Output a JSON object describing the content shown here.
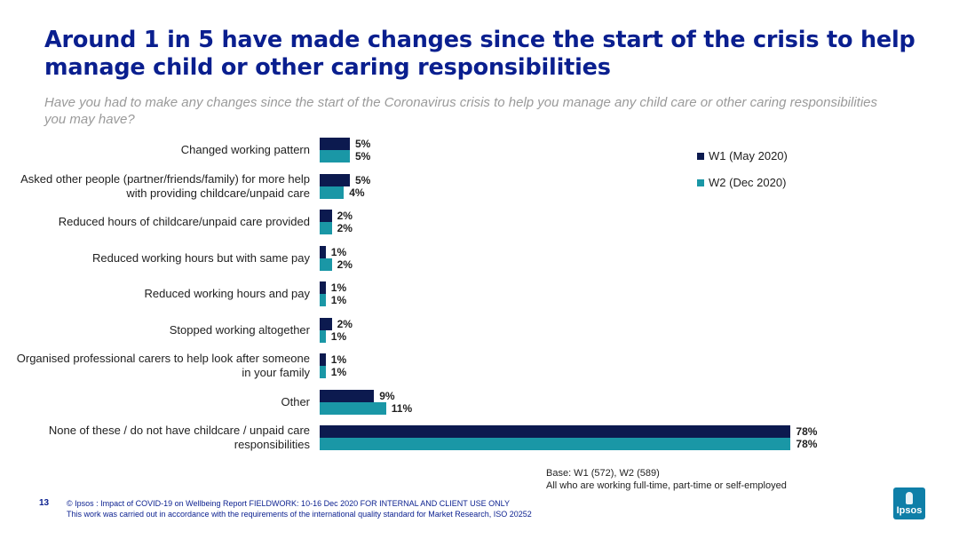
{
  "title": "Around 1 in 5 have made changes since the start of the crisis to help manage child or other caring responsibilities",
  "subtitle": "Have you had to make any changes since the start of the Coronavirus crisis to help you manage any child care or other caring responsibilities you may have?",
  "chart_data": {
    "type": "bar",
    "orientation": "horizontal",
    "categories": [
      "Changed working pattern",
      "Asked other people (partner/friends/family) for more help with providing childcare/unpaid care",
      "Reduced hours of childcare/unpaid care provided",
      "Reduced working hours but with same pay",
      "Reduced working hours and pay",
      "Stopped working altogether",
      "Organised professional carers to help look after someone in your family",
      "Other",
      "None of these / do not have childcare / unpaid care responsibilities"
    ],
    "series": [
      {
        "name": "W1 (May 2020)",
        "color": "#0c1a4f",
        "values": [
          5,
          5,
          2,
          1,
          1,
          2,
          1,
          9,
          78
        ]
      },
      {
        "name": "W2 (Dec 2020)",
        "color": "#1a97a6",
        "values": [
          5,
          4,
          2,
          2,
          1,
          1,
          1,
          11,
          78
        ]
      }
    ],
    "value_suffix": "%",
    "xlim": [
      0,
      78
    ],
    "grid": false,
    "legend_position": "top-right"
  },
  "base_note": {
    "line1": "Base: W1 (572), W2 (589)",
    "line2": "All who are working full-time, part-time or self-employed"
  },
  "footer": {
    "page_number": "13",
    "line1": "© Ipsos : Impact of COVID-19 on Wellbeing Report FIELDWORK: 10-16 Dec 2020 FOR INTERNAL AND CLIENT USE ONLY",
    "line2": "This work was carried out in accordance with the requirements of the international quality standard for Market Research, ISO 20252"
  },
  "logo": {
    "text": "Ipsos"
  }
}
